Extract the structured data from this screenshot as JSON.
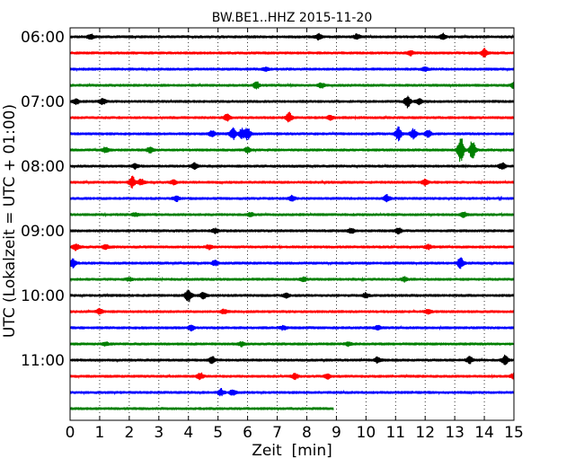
{
  "chart_data": {
    "type": "line",
    "title": "BW.BE1..HHZ 2015-11-20",
    "xlabel": "Zeit  [min]",
    "ylabel": "UTC (Lokalzeit = UTC + 01:00)",
    "xlim": [
      0,
      15
    ],
    "xticks": [
      "0",
      "1",
      "2",
      "3",
      "4",
      "5",
      "6",
      "7",
      "8",
      "9",
      "10",
      "11",
      "12",
      "13",
      "14",
      "15"
    ],
    "yticks": [
      "06:00",
      "07:00",
      "08:00",
      "09:00",
      "10:00",
      "11:00"
    ],
    "grid": "vertical dotted at each minute",
    "rows_per_hour": 4,
    "trace_colors": [
      "#000000",
      "#ff0000",
      "#0000ff",
      "#007f00"
    ],
    "traces": [
      {
        "start": "06:00",
        "end_min": 15,
        "events": [
          [
            0.7,
            0.3
          ],
          [
            8.4,
            0.35
          ],
          [
            9.7,
            0.3
          ],
          [
            12.6,
            0.35
          ]
        ]
      },
      {
        "start": "06:15",
        "end_min": 15,
        "events": [
          [
            11.5,
            0.3
          ],
          [
            14.0,
            0.5
          ]
        ]
      },
      {
        "start": "06:30",
        "end_min": 15,
        "events": [
          [
            6.6,
            0.2
          ],
          [
            12.0,
            0.2
          ]
        ]
      },
      {
        "start": "06:45",
        "end_min": 15,
        "events": [
          [
            6.3,
            0.4
          ],
          [
            8.5,
            0.3
          ],
          [
            15.0,
            0.4
          ]
        ]
      },
      {
        "start": "07:00",
        "end_min": 15,
        "events": [
          [
            0.2,
            0.3
          ],
          [
            1.1,
            0.4
          ],
          [
            11.4,
            0.7
          ],
          [
            11.8,
            0.35
          ]
        ]
      },
      {
        "start": "07:15",
        "end_min": 15,
        "events": [
          [
            5.3,
            0.4
          ],
          [
            7.4,
            0.6
          ],
          [
            8.8,
            0.3
          ]
        ]
      },
      {
        "start": "07:30",
        "end_min": 15,
        "events": [
          [
            4.8,
            0.4
          ],
          [
            5.5,
            0.7
          ],
          [
            5.8,
            0.6
          ],
          [
            6.0,
            0.7
          ],
          [
            11.1,
            0.9
          ],
          [
            11.6,
            0.6
          ],
          [
            12.1,
            0.4
          ]
        ]
      },
      {
        "start": "07:45",
        "end_min": 15,
        "events": [
          [
            1.2,
            0.3
          ],
          [
            2.7,
            0.35
          ],
          [
            6.0,
            0.3
          ],
          [
            13.2,
            1.7
          ],
          [
            13.6,
            1.2
          ]
        ]
      },
      {
        "start": "08:00",
        "end_min": 15,
        "events": [
          [
            2.2,
            0.3
          ],
          [
            4.2,
            0.35
          ],
          [
            14.6,
            0.4
          ]
        ]
      },
      {
        "start": "08:15",
        "end_min": 15,
        "events": [
          [
            2.1,
            0.7
          ],
          [
            2.4,
            0.4
          ],
          [
            3.5,
            0.3
          ],
          [
            12.0,
            0.35
          ]
        ]
      },
      {
        "start": "08:30",
        "end_min": 15,
        "events": [
          [
            3.6,
            0.3
          ],
          [
            7.5,
            0.3
          ],
          [
            10.7,
            0.4
          ]
        ]
      },
      {
        "start": "08:45",
        "end_min": 15,
        "events": [
          [
            2.2,
            0.2
          ],
          [
            6.1,
            0.25
          ],
          [
            13.3,
            0.3
          ]
        ]
      },
      {
        "start": "09:00",
        "end_min": 15,
        "events": [
          [
            4.9,
            0.3
          ],
          [
            9.5,
            0.3
          ],
          [
            11.1,
            0.35
          ]
        ]
      },
      {
        "start": "09:15",
        "end_min": 15,
        "events": [
          [
            0.2,
            0.4
          ],
          [
            1.2,
            0.25
          ],
          [
            4.7,
            0.25
          ],
          [
            12.1,
            0.3
          ]
        ]
      },
      {
        "start": "09:30",
        "end_min": 15,
        "events": [
          [
            0.1,
            0.5
          ],
          [
            4.9,
            0.3
          ],
          [
            13.2,
            0.7
          ]
        ]
      },
      {
        "start": "09:45",
        "end_min": 15,
        "events": [
          [
            2.0,
            0.2
          ],
          [
            7.9,
            0.25
          ],
          [
            11.3,
            0.25
          ]
        ]
      },
      {
        "start": "10:00",
        "end_min": 15,
        "events": [
          [
            4.0,
            0.8
          ],
          [
            4.5,
            0.4
          ],
          [
            7.3,
            0.3
          ],
          [
            10.0,
            0.3
          ]
        ]
      },
      {
        "start": "10:15",
        "end_min": 15,
        "events": [
          [
            1.0,
            0.3
          ],
          [
            5.2,
            0.25
          ],
          [
            12.1,
            0.25
          ]
        ]
      },
      {
        "start": "10:30",
        "end_min": 15,
        "events": [
          [
            4.1,
            0.3
          ],
          [
            7.2,
            0.25
          ],
          [
            10.4,
            0.25
          ]
        ]
      },
      {
        "start": "10:45",
        "end_min": 15,
        "events": [
          [
            1.2,
            0.2
          ],
          [
            5.8,
            0.25
          ],
          [
            9.4,
            0.2
          ]
        ]
      },
      {
        "start": "11:00",
        "end_min": 15,
        "events": [
          [
            4.8,
            0.4
          ],
          [
            10.4,
            0.35
          ],
          [
            13.5,
            0.4
          ],
          [
            14.7,
            0.6
          ]
        ]
      },
      {
        "start": "11:15",
        "end_min": 15,
        "events": [
          [
            4.4,
            0.4
          ],
          [
            7.6,
            0.35
          ],
          [
            8.7,
            0.3
          ],
          [
            15.0,
            0.4
          ]
        ]
      },
      {
        "start": "11:30",
        "end_min": 15,
        "events": [
          [
            5.1,
            0.4
          ],
          [
            5.5,
            0.3
          ]
        ]
      },
      {
        "start": "11:45",
        "end_min": 8.9,
        "events": []
      }
    ]
  }
}
